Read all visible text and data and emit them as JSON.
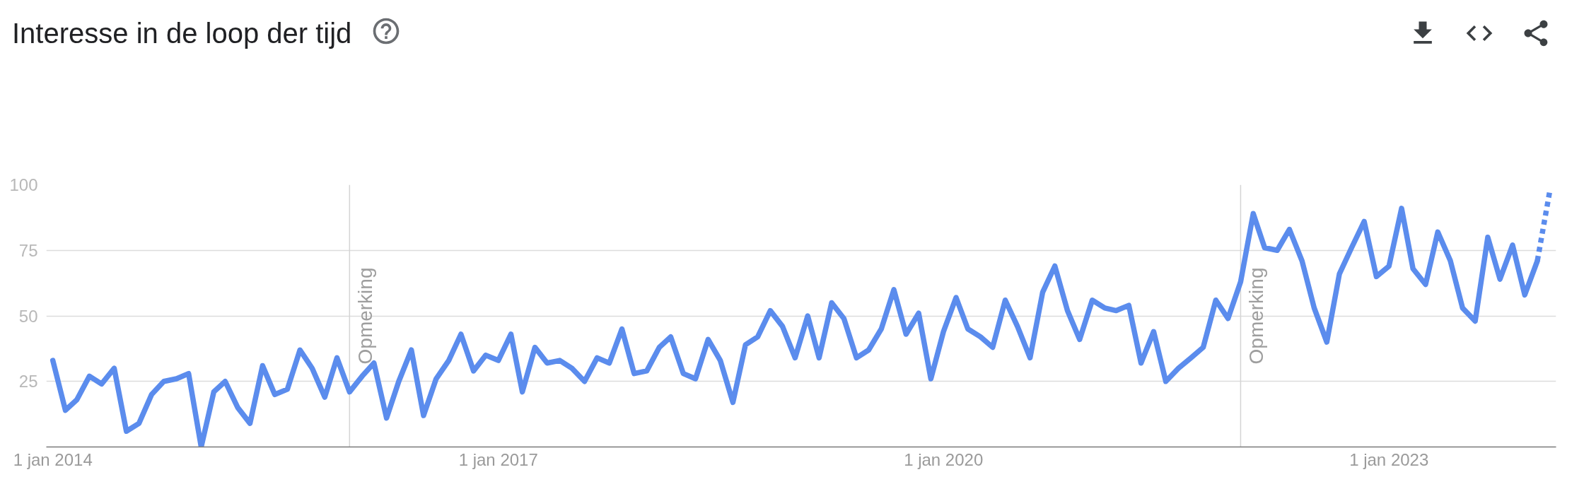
{
  "chart_data": {
    "type": "line",
    "title": "Interesse in de loop der tijd",
    "x": [
      "2014-01",
      "2014-02",
      "2014-03",
      "2014-04",
      "2014-05",
      "2014-06",
      "2014-07",
      "2014-08",
      "2014-09",
      "2014-10",
      "2014-11",
      "2014-12",
      "2015-01",
      "2015-02",
      "2015-03",
      "2015-04",
      "2015-05",
      "2015-06",
      "2015-07",
      "2015-08",
      "2015-09",
      "2015-10",
      "2015-11",
      "2015-12",
      "2016-01",
      "2016-02",
      "2016-03",
      "2016-04",
      "2016-05",
      "2016-06",
      "2016-07",
      "2016-08",
      "2016-09",
      "2016-10",
      "2016-11",
      "2016-12",
      "2017-01",
      "2017-02",
      "2017-03",
      "2017-04",
      "2017-05",
      "2017-06",
      "2017-07",
      "2017-08",
      "2017-09",
      "2017-10",
      "2017-11",
      "2017-12",
      "2018-01",
      "2018-02",
      "2018-03",
      "2018-04",
      "2018-05",
      "2018-06",
      "2018-07",
      "2018-08",
      "2018-09",
      "2018-10",
      "2018-11",
      "2018-12",
      "2019-01",
      "2019-02",
      "2019-03",
      "2019-04",
      "2019-05",
      "2019-06",
      "2019-07",
      "2019-08",
      "2019-09",
      "2019-10",
      "2019-11",
      "2019-12",
      "2020-01",
      "2020-02",
      "2020-03",
      "2020-04",
      "2020-05",
      "2020-06",
      "2020-07",
      "2020-08",
      "2020-09",
      "2020-10",
      "2020-11",
      "2020-12",
      "2021-01",
      "2021-02",
      "2021-03",
      "2021-04",
      "2021-05",
      "2021-06",
      "2021-07",
      "2021-08",
      "2021-09",
      "2021-10",
      "2021-11",
      "2021-12",
      "2022-01",
      "2022-02",
      "2022-03",
      "2022-04",
      "2022-05",
      "2022-06",
      "2022-07",
      "2022-08",
      "2022-09",
      "2022-10",
      "2022-11",
      "2022-12",
      "2023-01",
      "2023-02",
      "2023-03",
      "2023-04",
      "2023-05",
      "2023-06",
      "2023-07",
      "2023-08",
      "2023-09",
      "2023-10",
      "2023-11",
      "2023-12",
      "2024-01"
    ],
    "series": [
      {
        "color": "#5b8ced",
        "values": [
          33,
          14,
          18,
          27,
          24,
          30,
          6,
          9,
          20,
          25,
          26,
          28,
          0,
          21,
          25,
          15,
          9,
          31,
          20,
          22,
          37,
          30,
          19,
          34,
          21,
          27,
          32,
          11,
          25,
          37,
          12,
          26,
          33,
          43,
          29,
          35,
          33,
          43,
          21,
          38,
          32,
          33,
          30,
          25,
          34,
          32,
          45,
          28,
          29,
          38,
          42,
          28,
          26,
          41,
          33,
          17,
          39,
          42,
          52,
          46,
          34,
          50,
          34,
          55,
          49,
          34,
          37,
          45,
          60,
          43,
          51,
          26,
          44,
          57,
          45,
          42,
          38,
          56,
          46,
          34,
          59,
          69,
          52,
          41,
          56,
          53,
          52,
          54,
          32,
          44,
          25,
          30,
          34,
          38,
          56,
          49,
          63,
          89,
          76,
          75,
          83,
          71,
          53,
          40,
          66,
          76,
          86,
          65,
          69,
          91,
          68,
          62,
          82,
          71,
          53,
          48,
          80,
          64,
          77,
          58,
          71
        ]
      },
      {
        "color": "#5b8ced",
        "x": [
          "2024-01",
          "2024-02"
        ],
        "values": [
          71,
          98
        ],
        "line_style": "dotted"
      }
    ],
    "line_style": "solid",
    "xlim": [
      "2013-12-16",
      "2024-02-16"
    ],
    "xticks": [
      {
        "value": "2014-01-01",
        "label": "1 jan 2014"
      },
      {
        "value": "2017-01-01",
        "label": "1 jan 2017"
      },
      {
        "value": "2020-01-01",
        "label": "1 jan 2020"
      },
      {
        "value": "2023-01-01",
        "label": "1 jan 2023"
      }
    ],
    "ylim": [
      0,
      100
    ],
    "yticks": [
      25,
      50,
      75,
      100
    ],
    "grid": "y",
    "ref_lines": [
      {
        "axis": "x",
        "value": "2016-01",
        "label": "Opmerking",
        "color": "#d4d4d4"
      },
      {
        "axis": "x",
        "value": "2022-01",
        "label": "Opmerking",
        "color": "#d4d4d4"
      }
    ]
  }
}
